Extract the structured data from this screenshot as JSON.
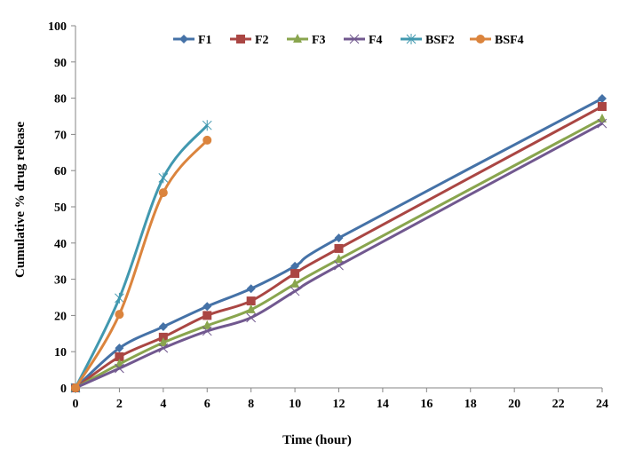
{
  "chart_data": {
    "type": "line",
    "title": "",
    "xlabel": "Time (hour)",
    "ylabel": "Cumulative % drug release",
    "xlim": [
      0,
      24
    ],
    "ylim": [
      0,
      100
    ],
    "xticks": [
      0,
      2,
      4,
      6,
      8,
      10,
      12,
      14,
      16,
      18,
      20,
      22,
      24
    ],
    "yticks": [
      0,
      10,
      20,
      30,
      40,
      50,
      60,
      70,
      80,
      90,
      100
    ],
    "grid": false,
    "legend_placement": "top",
    "smoothed": true,
    "series": [
      {
        "name": "F1",
        "color": "#4572A7",
        "marker": "diamond",
        "x": [
          0,
          2,
          4,
          6,
          8,
          10,
          12,
          24
        ],
        "y": [
          0,
          11.0,
          16.9,
          22.5,
          27.4,
          33.6,
          41.4,
          79.9
        ]
      },
      {
        "name": "F2",
        "color": "#AA4643",
        "marker": "square",
        "x": [
          0,
          2,
          4,
          6,
          8,
          10,
          12,
          24
        ],
        "y": [
          0,
          8.6,
          14.0,
          20.0,
          24.0,
          31.6,
          38.5,
          77.7
        ]
      },
      {
        "name": "F3",
        "color": "#89A54E",
        "marker": "triangle",
        "x": [
          0,
          2,
          4,
          6,
          8,
          10,
          12,
          24
        ],
        "y": [
          0,
          6.6,
          12.5,
          17.2,
          21.6,
          28.7,
          35.5,
          74.3
        ]
      },
      {
        "name": "F4",
        "color": "#71588F",
        "marker": "x",
        "x": [
          0,
          2,
          4,
          6,
          8,
          10,
          12,
          24
        ],
        "y": [
          0,
          5.4,
          11.0,
          15.7,
          19.4,
          26.7,
          33.8,
          73.0
        ]
      },
      {
        "name": "BSF2",
        "color": "#4198AF",
        "marker": "star",
        "x": [
          0,
          2,
          4,
          6
        ],
        "y": [
          0,
          24.8,
          58.0,
          72.5
        ]
      },
      {
        "name": "BSF4",
        "color": "#DB843D",
        "marker": "circle",
        "x": [
          0,
          2,
          4,
          6
        ],
        "y": [
          0,
          20.3,
          53.9,
          68.4
        ]
      }
    ]
  }
}
